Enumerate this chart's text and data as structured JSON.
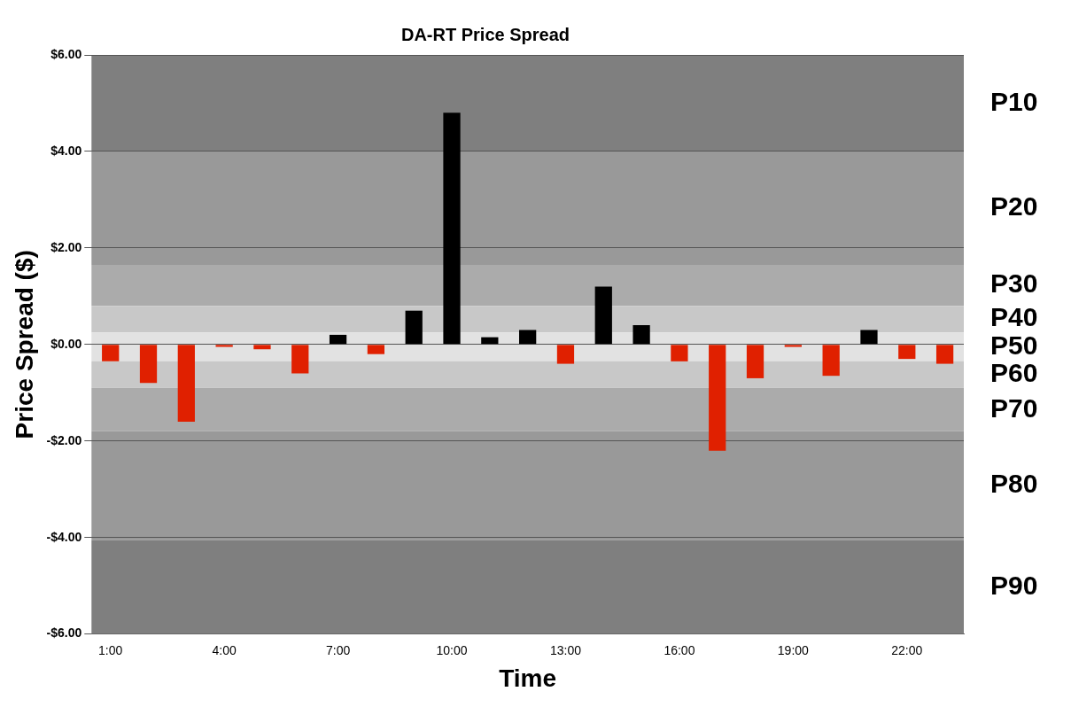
{
  "chart_data": {
    "type": "bar",
    "title": "DA-RT Price Spread",
    "xlabel": "Time",
    "ylabel": "Price Spread ($)",
    "categories": [
      "1:00",
      null,
      null,
      "4:00",
      null,
      null,
      "7:00",
      null,
      null,
      "10:00",
      null,
      null,
      "13:00",
      null,
      null,
      "16:00",
      null,
      null,
      "19:00",
      null,
      null,
      "22:00",
      null
    ],
    "values": [
      -0.35,
      -0.8,
      -1.6,
      -0.05,
      -0.1,
      -0.6,
      0.2,
      -0.2,
      0.7,
      4.8,
      0.15,
      0.3,
      -0.4,
      1.2,
      0.4,
      -0.35,
      -2.2,
      -0.7,
      -0.05,
      -0.65,
      0.3,
      -0.3,
      -0.4
    ],
    "colors": [
      "#e02000",
      "#e02000",
      "#e02000",
      "#e02000",
      "#e02000",
      "#e02000",
      "#000000",
      "#e02000",
      "#000000",
      "#000000",
      "#000000",
      "#000000",
      "#e02000",
      "#000000",
      "#000000",
      "#e02000",
      "#e02000",
      "#e02000",
      "#e02000",
      "#e02000",
      "#000000",
      "#e02000",
      "#e02000"
    ],
    "ylim": [
      -6,
      6
    ],
    "yticks": [
      {
        "value": -6,
        "label": "-$6.00"
      },
      {
        "value": -4,
        "label": "-$4.00"
      },
      {
        "value": -2,
        "label": "-$2.00"
      },
      {
        "value": 0,
        "label": "$0.00"
      },
      {
        "value": 2,
        "label": "$2.00"
      },
      {
        "value": 4,
        "label": "$4.00"
      },
      {
        "value": 6,
        "label": "$6.00"
      }
    ],
    "grid": "y",
    "legend": false,
    "bands": [
      {
        "axis": "y",
        "from": 4,
        "to": 6,
        "label": "P10",
        "color": "#7f7f7f"
      },
      {
        "axis": "y",
        "from": 1.65,
        "to": 4,
        "label": "P20",
        "color": "#999999"
      },
      {
        "axis": "y",
        "from": 0.8,
        "to": 1.65,
        "label": "P30",
        "color": "#ababab"
      },
      {
        "axis": "y",
        "from": 0.25,
        "to": 0.8,
        "label": "P40",
        "color": "#c8c8c8"
      },
      {
        "axis": "y",
        "from": -0.35,
        "to": 0.25,
        "label": "P50",
        "color": "#e2e2e2"
      },
      {
        "axis": "y",
        "from": -0.9,
        "to": -0.35,
        "label": "P60",
        "color": "#c8c8c8"
      },
      {
        "axis": "y",
        "from": -1.8,
        "to": -0.9,
        "label": "P70",
        "color": "#ababab"
      },
      {
        "axis": "y",
        "from": -4.05,
        "to": -1.8,
        "label": "P80",
        "color": "#999999"
      },
      {
        "axis": "y",
        "from": -6,
        "to": -4.05,
        "label": "P90",
        "color": "#7f7f7f"
      }
    ]
  }
}
